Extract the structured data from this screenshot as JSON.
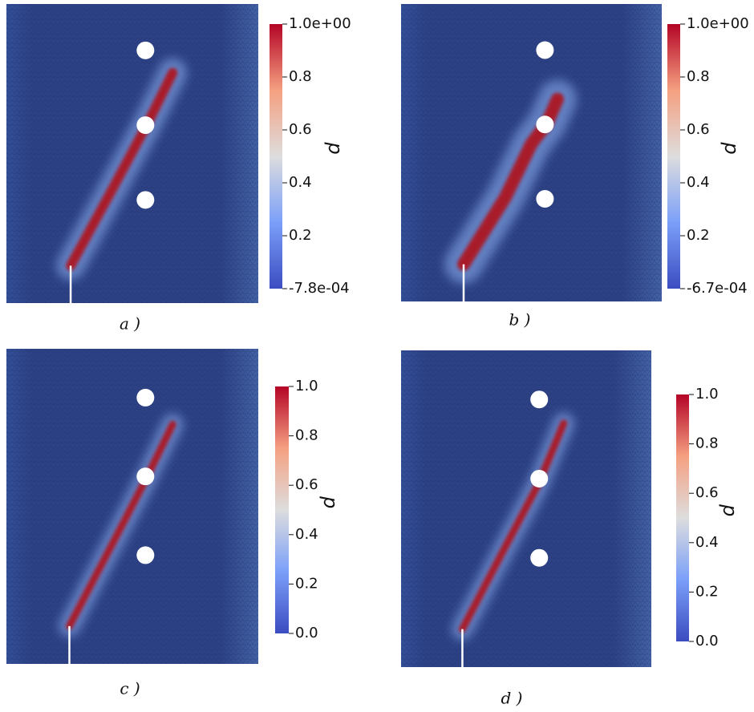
{
  "panels": [
    {
      "label": "a )",
      "colorbar": {
        "title": "d",
        "ticks": [
          "1.0e+00",
          "0.8",
          "0.6",
          "0.4",
          "0.2",
          "-7.8e-04"
        ]
      }
    },
    {
      "label": "b )",
      "colorbar": {
        "title": "d",
        "ticks": [
          "1.0e+00",
          "0.8",
          "0.6",
          "0.4",
          "0.2",
          "-6.7e-04"
        ]
      }
    },
    {
      "label": "c )",
      "colorbar": {
        "title": "d",
        "ticks": [
          "1.0",
          "0.8",
          "0.6",
          "0.4",
          "0.2",
          "0.0"
        ]
      }
    },
    {
      "label": "d )",
      "colorbar": {
        "title": "d",
        "ticks": [
          "1.0",
          "0.8",
          "0.6",
          "0.4",
          "0.2",
          "0.0"
        ]
      }
    }
  ]
}
